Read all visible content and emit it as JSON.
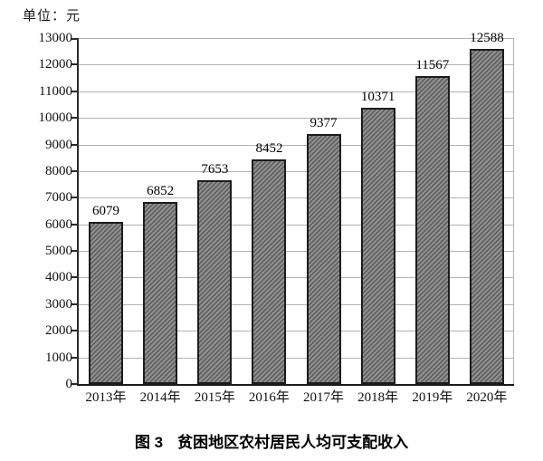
{
  "unit_label": "单位：元",
  "caption": {
    "fig_label": "图 3",
    "title": "贫困地区农村居民人均可支配收入"
  },
  "chart_data": {
    "type": "bar",
    "title": "图 3 贫困地区农村居民人均可支配收入",
    "unit": "单位：元",
    "categories": [
      "2013年",
      "2014年",
      "2015年",
      "2016年",
      "2017年",
      "2018年",
      "2019年",
      "2020年"
    ],
    "values": [
      6079,
      6852,
      7653,
      8452,
      9377,
      10371,
      11567,
      12588
    ],
    "xlabel": "",
    "ylabel": "元",
    "ylim": [
      0,
      13000
    ],
    "ytick_step": 1000,
    "grid": true,
    "legend": "none",
    "bar_fill_color": "#8f8f8f",
    "bar_hatch_color": "#5a5a5a",
    "bar_border_color": "#1c1c1c",
    "gridline_color": "#b3b3b3",
    "axis_color": "#2b2b2b",
    "hatch_style": "diagonal-forward"
  }
}
